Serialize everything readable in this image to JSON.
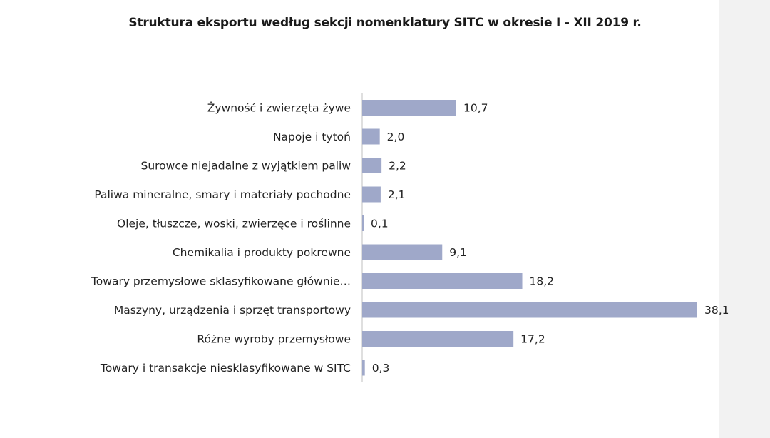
{
  "chart_data": {
    "type": "bar",
    "orientation": "horizontal",
    "title": "Struktura eksportu według sekcji nomenklatury SITC w okresie I - XII 2019 r.",
    "categories": [
      "Żywność i zwierzęta żywe",
      "Napoje i tytoń",
      "Surowce niejadalne z wyjątkiem paliw",
      "Paliwa mineralne, smary i materiały  pochodne",
      "Oleje, tłuszcze, woski, zwierzęce i roślinne",
      "Chemikalia i produkty pokrewne",
      "Towary przemysłowe sklasyfikowane głównie…",
      "Maszyny, urządzenia i sprzęt transportowy",
      "Różne wyroby przemysłowe",
      "Towary i transakcje niesklasyfikowane w SITC"
    ],
    "values": [
      10.7,
      2.0,
      2.2,
      2.1,
      0.1,
      9.1,
      18.2,
      38.1,
      17.2,
      0.3
    ],
    "value_labels": [
      "10,7",
      "2,0",
      "2,2",
      "2,1",
      "0,1",
      "9,1",
      "18,2",
      "38,1",
      "17,2",
      "0,3"
    ],
    "xlim": [
      0,
      38.1
    ],
    "grid": false,
    "legend": "none",
    "bar_color": "#9fa8c9",
    "axis_color": "#bfbfbf"
  }
}
